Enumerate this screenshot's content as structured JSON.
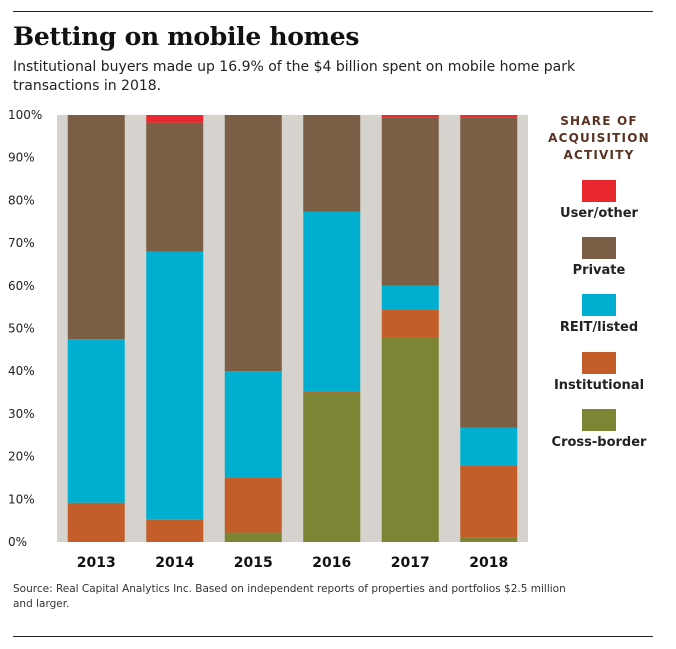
{
  "header": {
    "title": "Betting on mobile homes",
    "subtitle": "Institutional buyers made up 16.9% of the $4 billion spent on mobile home park transactions in 2018."
  },
  "footer": {
    "source": "Source: Real Capital Analytics Inc. Based on independent reports of properties and portfolios $2.5 million and larger."
  },
  "legend": {
    "title": "SHARE OF ACQUISITION ACTIVITY",
    "items": [
      {
        "label": "User/other",
        "color": "#e8282e"
      },
      {
        "label": "Private",
        "color": "#7a5e45"
      },
      {
        "label": "REIT/listed",
        "color": "#00afd0"
      },
      {
        "label": "Institutional",
        "color": "#c35e2a"
      },
      {
        "label": "Cross-border",
        "color": "#7d8433"
      }
    ]
  },
  "chart_data": {
    "type": "bar",
    "stacked": true,
    "title": "",
    "xlabel": "",
    "ylabel": "",
    "ylim": [
      0,
      100
    ],
    "y_ticks": [
      "0%",
      "10%",
      "20%",
      "30%",
      "40%",
      "50%",
      "60%",
      "70%",
      "80%",
      "90%",
      "100%"
    ],
    "categories": [
      "2013",
      "2014",
      "2015",
      "2016",
      "2017",
      "2018"
    ],
    "series": [
      {
        "name": "Cross-border",
        "color": "#7d8433",
        "values": [
          0,
          0,
          2.2,
          35,
          48,
          1
        ]
      },
      {
        "name": "Institutional",
        "color": "#c35e2a",
        "values": [
          9.2,
          5.2,
          12.8,
          0.3,
          6.5,
          16.9
        ]
      },
      {
        "name": "REIT/listed",
        "color": "#00afd0",
        "values": [
          38.3,
          62.8,
          25,
          42.1,
          5.5,
          8.9
        ]
      },
      {
        "name": "Private",
        "color": "#7a5e45",
        "values": [
          52.5,
          30.2,
          60,
          22.6,
          39.5,
          72.7
        ]
      },
      {
        "name": "User/other",
        "color": "#e8282e",
        "values": [
          0,
          1.8,
          0,
          0,
          0.5,
          0.5
        ]
      }
    ],
    "grid": true,
    "legend_position": "right"
  }
}
